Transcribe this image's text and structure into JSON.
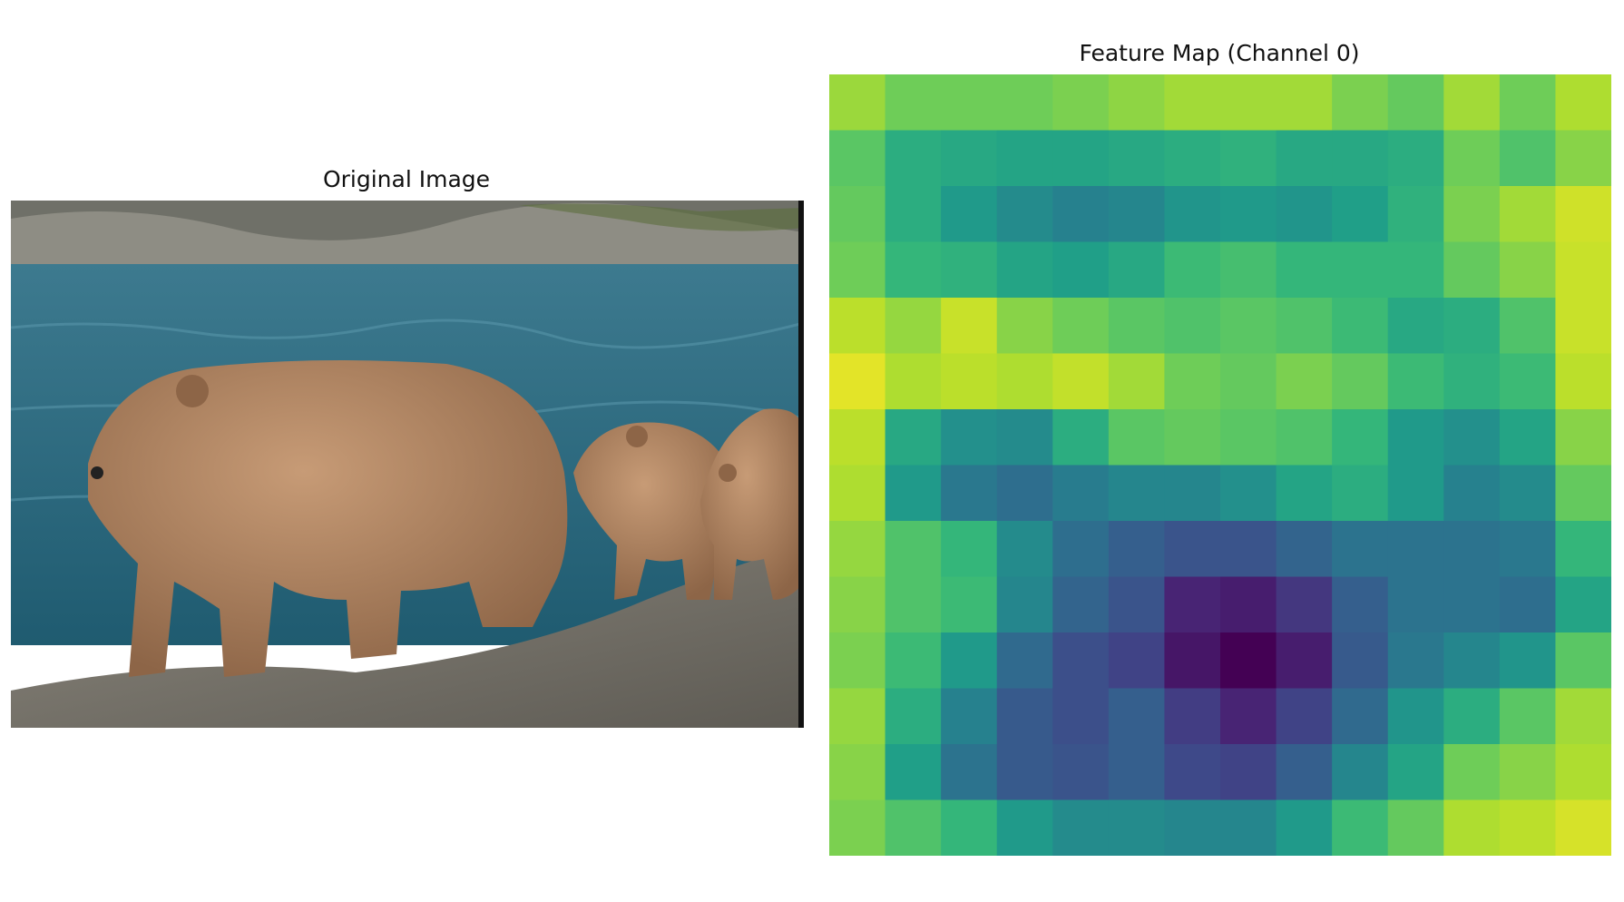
{
  "panels": {
    "left_title": "Original Image",
    "right_title": "Feature Map (Channel 0)"
  },
  "photo": {
    "subject": "brown bear with two cubs walking along a rocky riverbank",
    "colors": {
      "water": "#2f6f86",
      "fur": "#b58a66",
      "rock": "#7c7a72"
    }
  },
  "chart_data": {
    "type": "heatmap",
    "title": "Feature Map (Channel 0)",
    "colormap": "viridis",
    "axes": "off",
    "rows": 14,
    "cols": 14,
    "values": [
      [
        0.85,
        0.78,
        0.78,
        0.78,
        0.8,
        0.83,
        0.86,
        0.86,
        0.86,
        0.8,
        0.76,
        0.86,
        0.78,
        0.88
      ],
      [
        0.74,
        0.62,
        0.6,
        0.58,
        0.58,
        0.6,
        0.62,
        0.64,
        0.6,
        0.6,
        0.62,
        0.78,
        0.72,
        0.82
      ],
      [
        0.76,
        0.62,
        0.54,
        0.48,
        0.44,
        0.46,
        0.52,
        0.54,
        0.52,
        0.56,
        0.64,
        0.8,
        0.86,
        0.93
      ],
      [
        0.78,
        0.66,
        0.64,
        0.58,
        0.56,
        0.6,
        0.68,
        0.7,
        0.66,
        0.66,
        0.66,
        0.76,
        0.82,
        0.92
      ],
      [
        0.9,
        0.84,
        0.92,
        0.82,
        0.78,
        0.74,
        0.72,
        0.74,
        0.72,
        0.68,
        0.6,
        0.62,
        0.72,
        0.92
      ],
      [
        0.96,
        0.88,
        0.9,
        0.88,
        0.91,
        0.86,
        0.78,
        0.76,
        0.8,
        0.76,
        0.68,
        0.64,
        0.68,
        0.9
      ],
      [
        0.9,
        0.6,
        0.5,
        0.48,
        0.62,
        0.74,
        0.76,
        0.74,
        0.72,
        0.66,
        0.54,
        0.5,
        0.58,
        0.82
      ],
      [
        0.88,
        0.54,
        0.4,
        0.36,
        0.42,
        0.46,
        0.46,
        0.5,
        0.58,
        0.62,
        0.54,
        0.44,
        0.48,
        0.76
      ],
      [
        0.84,
        0.72,
        0.66,
        0.48,
        0.36,
        0.3,
        0.26,
        0.26,
        0.32,
        0.38,
        0.38,
        0.38,
        0.4,
        0.66
      ],
      [
        0.82,
        0.72,
        0.68,
        0.46,
        0.32,
        0.26,
        0.1,
        0.08,
        0.16,
        0.3,
        0.38,
        0.38,
        0.36,
        0.58
      ],
      [
        0.8,
        0.68,
        0.54,
        0.34,
        0.24,
        0.2,
        0.06,
        0.0,
        0.08,
        0.28,
        0.4,
        0.46,
        0.52,
        0.74
      ],
      [
        0.84,
        0.62,
        0.44,
        0.28,
        0.24,
        0.3,
        0.18,
        0.1,
        0.2,
        0.34,
        0.52,
        0.62,
        0.74,
        0.86
      ],
      [
        0.82,
        0.56,
        0.38,
        0.28,
        0.26,
        0.3,
        0.22,
        0.2,
        0.3,
        0.46,
        0.58,
        0.78,
        0.82,
        0.88
      ],
      [
        0.8,
        0.72,
        0.66,
        0.54,
        0.48,
        0.48,
        0.46,
        0.46,
        0.54,
        0.68,
        0.76,
        0.88,
        0.9,
        0.94
      ]
    ]
  }
}
